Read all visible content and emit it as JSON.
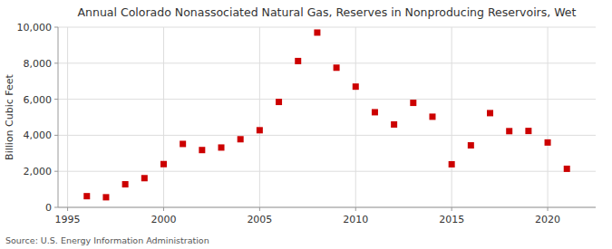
{
  "chart_data": {
    "type": "scatter",
    "title": "Annual Colorado Nonassociated Natural Gas, Reserves in Nonproducing Reservoirs, Wet",
    "ylabel": "Billion Cubic Feet",
    "annotations": [
      "Source: U.S. Energy Information Administration"
    ],
    "x": [
      1996,
      1997,
      1998,
      1999,
      2000,
      2001,
      2002,
      2003,
      2004,
      2005,
      2006,
      2007,
      2008,
      2009,
      2010,
      2011,
      2012,
      2013,
      2014,
      2015,
      2016,
      2017,
      2018,
      2019,
      2020,
      2021
    ],
    "values": [
      620,
      560,
      1280,
      1620,
      2400,
      3520,
      3180,
      3320,
      3780,
      4280,
      5850,
      8120,
      9700,
      7750,
      6700,
      5280,
      4600,
      5800,
      5030,
      2390,
      3440,
      5230,
      4230,
      4240,
      3600,
      2140
    ],
    "color": "#cc0000",
    "marker": "square",
    "xlim": [
      1994.5,
      2022.5
    ],
    "xticks": [
      1995,
      2000,
      2005,
      2010,
      2015,
      2020
    ],
    "ylim": [
      0,
      10000
    ],
    "yticks": [
      0,
      {
        "value": 2000,
        "label": "2,000"
      },
      {
        "value": 4000,
        "label": "4,000"
      },
      {
        "value": 6000,
        "label": "6,000"
      },
      {
        "value": 8000,
        "label": "8,000"
      },
      {
        "value": 10000,
        "label": "10,000"
      }
    ],
    "grid": true
  }
}
